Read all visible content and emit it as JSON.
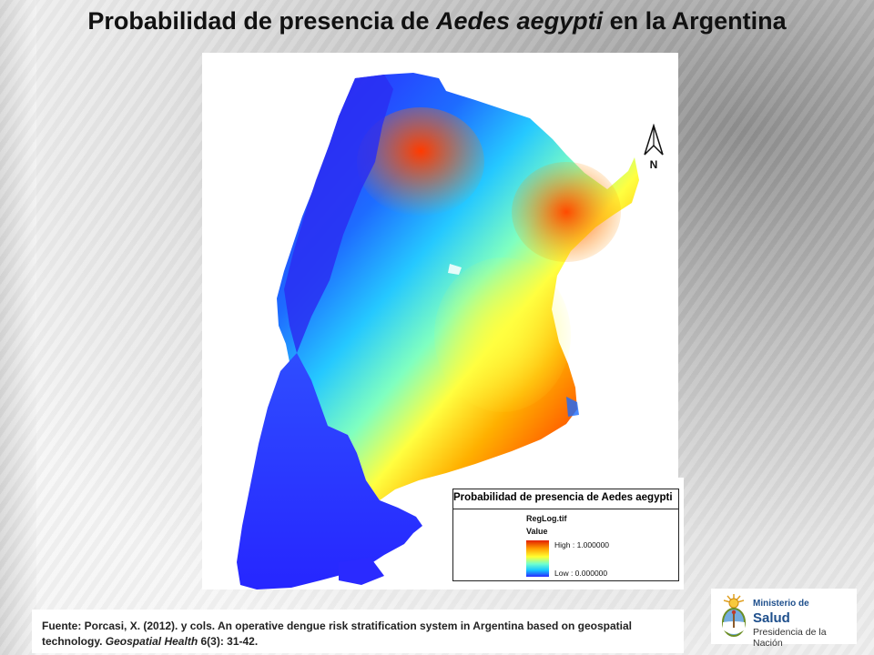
{
  "slide": {
    "title_prefix": "Probabilidad de presencia de ",
    "title_italic": "Aedes aegypti",
    "title_suffix": " en la Argentina"
  },
  "map": {
    "north_label": "N",
    "legend": {
      "title": "Probabilidad de presencia de Aedes aegypti",
      "layer": "RegLog.tif",
      "value_label": "Value",
      "high_label": "High : 1.000000",
      "low_label": "Low : 0.000000",
      "ramp_colors": [
        "#e21f00",
        "#ff9d00",
        "#ffff30",
        "#6fffd0",
        "#17c7ff",
        "#2b2bff"
      ]
    }
  },
  "source": {
    "text_1": "Fuente: Porcasi, X. (2012). y cols. An operative dengue risk stratification system in Argentina based on geospatial technology. ",
    "journal": "Geospatial Health",
    "text_2": " 6(3): 31-42."
  },
  "logo": {
    "line1": "Ministerio de",
    "line2": "Salud",
    "line3": "Presidencia de la Nación",
    "icon": "argentina-coat-of-arms-icon"
  }
}
